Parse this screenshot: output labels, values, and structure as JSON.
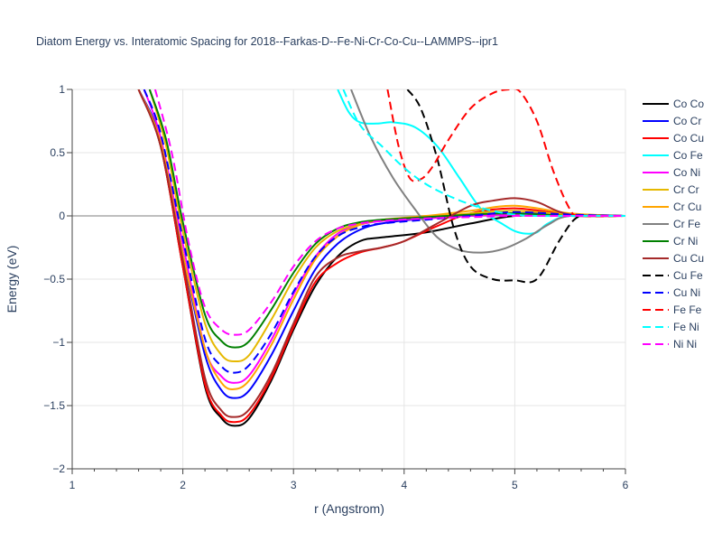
{
  "chart_data": {
    "type": "line",
    "title": "Diatom Energy vs. Interatomic Spacing for 2018--Farkas-D--Fe-Ni-Cr-Co-Cu--LAMMPS--ipr1",
    "xlabel": "r (Angstrom)",
    "ylabel": "Energy (eV)",
    "xlim": [
      1,
      6
    ],
    "ylim": [
      -2,
      1
    ],
    "xticks": [
      1,
      2,
      3,
      4,
      5,
      6
    ],
    "xtick_labels": [
      "1",
      "2",
      "3",
      "4",
      "5",
      "6"
    ],
    "yticks": [
      -2,
      -1.5,
      -1,
      -0.5,
      0,
      0.5,
      1
    ],
    "ytick_labels": [
      "−2",
      "−1.5",
      "−1",
      "−0.5",
      "0",
      "0.5",
      "1"
    ],
    "legend_position": "right",
    "series": [
      {
        "name": "Co Co",
        "color": "#000000",
        "dash": "solid",
        "x": [
          1.6,
          1.8,
          2.0,
          2.2,
          2.35,
          2.47,
          2.6,
          2.8,
          3.0,
          3.2,
          3.4,
          3.6,
          3.8,
          4.2,
          4.6,
          5.0,
          5.5,
          6.0
        ],
        "y": [
          1.0,
          0.55,
          -0.4,
          -1.35,
          -1.6,
          -1.66,
          -1.6,
          -1.3,
          -0.9,
          -0.55,
          -0.32,
          -0.2,
          -0.17,
          -0.13,
          -0.06,
          0.0,
          0.01,
          0.0
        ]
      },
      {
        "name": "Co Cr",
        "color": "#0000ff",
        "dash": "solid",
        "x": [
          1.6,
          1.8,
          2.0,
          2.2,
          2.35,
          2.47,
          2.6,
          2.8,
          3.0,
          3.2,
          3.4,
          3.6,
          3.8,
          4.2,
          4.6,
          5.0,
          5.5,
          6.0
        ],
        "y": [
          1.0,
          0.6,
          -0.3,
          -1.1,
          -1.38,
          -1.44,
          -1.38,
          -1.1,
          -0.75,
          -0.42,
          -0.22,
          -0.11,
          -0.06,
          -0.02,
          0.0,
          0.02,
          0.01,
          0.0
        ]
      },
      {
        "name": "Co Cu",
        "color": "#ff0000",
        "dash": "solid",
        "x": [
          1.6,
          1.8,
          2.0,
          2.2,
          2.35,
          2.47,
          2.6,
          2.8,
          3.0,
          3.2,
          3.4,
          3.6,
          3.8,
          4.0,
          4.3,
          4.6,
          5.0,
          5.5,
          6.0
        ],
        "y": [
          1.0,
          0.55,
          -0.4,
          -1.33,
          -1.58,
          -1.63,
          -1.57,
          -1.28,
          -0.88,
          -0.52,
          -0.37,
          -0.29,
          -0.25,
          -0.2,
          -0.08,
          0.02,
          0.06,
          0.01,
          0.0
        ]
      },
      {
        "name": "Co Fe",
        "color": "#00ffff",
        "dash": "solid",
        "x": [
          3.4,
          3.5,
          3.6,
          3.75,
          3.9,
          4.1,
          4.3,
          4.5,
          4.7,
          4.9,
          5.0,
          5.1,
          5.2,
          5.3,
          5.5,
          6.0
        ],
        "y": [
          1.0,
          0.82,
          0.74,
          0.73,
          0.74,
          0.7,
          0.55,
          0.3,
          0.05,
          -0.07,
          -0.12,
          -0.14,
          -0.13,
          -0.06,
          0.0,
          0.0
        ]
      },
      {
        "name": "Co Ni",
        "color": "#ff00ff",
        "dash": "solid",
        "x": [
          1.65,
          1.8,
          2.0,
          2.2,
          2.35,
          2.47,
          2.6,
          2.8,
          3.0,
          3.2,
          3.4,
          3.6,
          3.8,
          4.2,
          4.6,
          5.0,
          5.5,
          6.0
        ],
        "y": [
          1.0,
          0.62,
          -0.22,
          -1.05,
          -1.27,
          -1.32,
          -1.26,
          -0.98,
          -0.62,
          -0.32,
          -0.14,
          -0.07,
          -0.04,
          -0.02,
          0.0,
          0.01,
          0.0,
          0.0
        ]
      },
      {
        "name": "Cr Cr",
        "color": "#e6b800",
        "dash": "solid",
        "x": [
          1.7,
          1.85,
          2.0,
          2.2,
          2.35,
          2.47,
          2.6,
          2.8,
          3.0,
          3.2,
          3.4,
          3.6,
          3.8,
          4.2,
          4.6,
          5.0,
          5.5,
          6.0
        ],
        "y": [
          1.0,
          0.55,
          -0.12,
          -0.85,
          -1.1,
          -1.15,
          -1.1,
          -0.82,
          -0.5,
          -0.25,
          -0.12,
          -0.06,
          -0.03,
          -0.01,
          0.02,
          0.04,
          0.01,
          0.0
        ]
      },
      {
        "name": "Cr Cu",
        "color": "#ffa500",
        "dash": "solid",
        "x": [
          1.6,
          1.8,
          2.0,
          2.2,
          2.35,
          2.47,
          2.6,
          2.8,
          3.0,
          3.2,
          3.4,
          3.6,
          3.8,
          4.2,
          4.6,
          5.0,
          5.5,
          6.0
        ],
        "y": [
          1.0,
          0.58,
          -0.3,
          -1.05,
          -1.32,
          -1.37,
          -1.3,
          -1.02,
          -0.66,
          -0.34,
          -0.16,
          -0.07,
          -0.03,
          0.0,
          0.04,
          0.08,
          0.02,
          0.0
        ]
      },
      {
        "name": "Cr Fe",
        "color": "#808080",
        "dash": "solid",
        "x": [
          3.52,
          3.7,
          3.9,
          4.1,
          4.3,
          4.5,
          4.7,
          4.9,
          5.1,
          5.3,
          5.5,
          6.0
        ],
        "y": [
          1.0,
          0.62,
          0.3,
          0.05,
          -0.17,
          -0.27,
          -0.29,
          -0.26,
          -0.18,
          -0.07,
          0.0,
          0.0
        ]
      },
      {
        "name": "Cr Ni",
        "color": "#008000",
        "dash": "solid",
        "x": [
          1.7,
          1.85,
          2.0,
          2.2,
          2.35,
          2.47,
          2.6,
          2.8,
          3.0,
          3.2,
          3.4,
          3.6,
          3.8,
          4.2,
          4.6,
          5.0,
          5.5,
          6.0
        ],
        "y": [
          1.0,
          0.6,
          -0.05,
          -0.78,
          -0.99,
          -1.04,
          -0.99,
          -0.74,
          -0.45,
          -0.22,
          -0.1,
          -0.05,
          -0.03,
          -0.01,
          0.01,
          0.02,
          0.0,
          0.0
        ]
      },
      {
        "name": "Cu Cu",
        "color": "#a52a2a",
        "dash": "solid",
        "x": [
          1.6,
          1.8,
          2.0,
          2.2,
          2.35,
          2.47,
          2.6,
          2.8,
          3.0,
          3.2,
          3.4,
          3.6,
          3.8,
          4.0,
          4.3,
          4.6,
          4.8,
          5.0,
          5.2,
          5.5,
          6.0
        ],
        "y": [
          1.0,
          0.55,
          -0.35,
          -1.28,
          -1.54,
          -1.59,
          -1.53,
          -1.25,
          -0.85,
          -0.48,
          -0.33,
          -0.28,
          -0.25,
          -0.2,
          -0.06,
          0.08,
          0.12,
          0.14,
          0.11,
          0.01,
          0.0
        ]
      },
      {
        "name": "Cu Fe",
        "color": "#000000",
        "dash": "dash",
        "x": [
          4.03,
          4.15,
          4.3,
          4.45,
          4.6,
          4.8,
          5.0,
          5.2,
          5.4,
          5.55,
          5.7,
          6.0
        ],
        "y": [
          1.0,
          0.85,
          0.45,
          -0.1,
          -0.4,
          -0.5,
          -0.51,
          -0.5,
          -0.2,
          -0.02,
          0.0,
          0.0
        ]
      },
      {
        "name": "Cu Ni",
        "color": "#0000ff",
        "dash": "dash",
        "x": [
          1.65,
          1.8,
          2.0,
          2.2,
          2.35,
          2.47,
          2.6,
          2.8,
          3.0,
          3.2,
          3.4,
          3.6,
          3.8,
          4.2,
          4.6,
          5.0,
          5.5,
          6.0
        ],
        "y": [
          1.0,
          0.65,
          -0.18,
          -0.97,
          -1.19,
          -1.24,
          -1.18,
          -0.93,
          -0.6,
          -0.32,
          -0.16,
          -0.09,
          -0.06,
          -0.03,
          0.0,
          0.03,
          0.01,
          0.0
        ]
      },
      {
        "name": "Fe Fe",
        "color": "#ff0000",
        "dash": "dash",
        "x": [
          3.85,
          3.95,
          4.05,
          4.15,
          4.25,
          4.4,
          4.6,
          4.8,
          4.95,
          5.05,
          5.2,
          5.35,
          5.5,
          5.6,
          6.0
        ],
        "y": [
          1.0,
          0.55,
          0.3,
          0.29,
          0.38,
          0.6,
          0.85,
          0.97,
          1.0,
          0.98,
          0.75,
          0.35,
          0.05,
          0.0,
          0.0
        ]
      },
      {
        "name": "Fe Ni",
        "color": "#00ffff",
        "dash": "dash",
        "x": [
          3.45,
          3.6,
          3.8,
          4.0,
          4.2,
          4.4,
          4.6,
          4.8,
          5.0,
          5.2,
          5.5,
          6.0
        ],
        "y": [
          1.0,
          0.72,
          0.55,
          0.38,
          0.25,
          0.16,
          0.09,
          0.04,
          0.01,
          0.0,
          0.0,
          0.0
        ]
      },
      {
        "name": "Ni Ni",
        "color": "#ff00ff",
        "dash": "dash",
        "x": [
          1.75,
          1.9,
          2.05,
          2.2,
          2.35,
          2.47,
          2.6,
          2.8,
          3.0,
          3.2,
          3.4,
          3.6,
          3.8,
          4.2,
          4.6,
          5.0,
          5.5,
          6.0
        ],
        "y": [
          1.0,
          0.5,
          -0.2,
          -0.72,
          -0.9,
          -0.94,
          -0.9,
          -0.68,
          -0.4,
          -0.2,
          -0.1,
          -0.06,
          -0.04,
          -0.02,
          -0.01,
          0.0,
          0.0,
          0.0
        ]
      }
    ]
  }
}
